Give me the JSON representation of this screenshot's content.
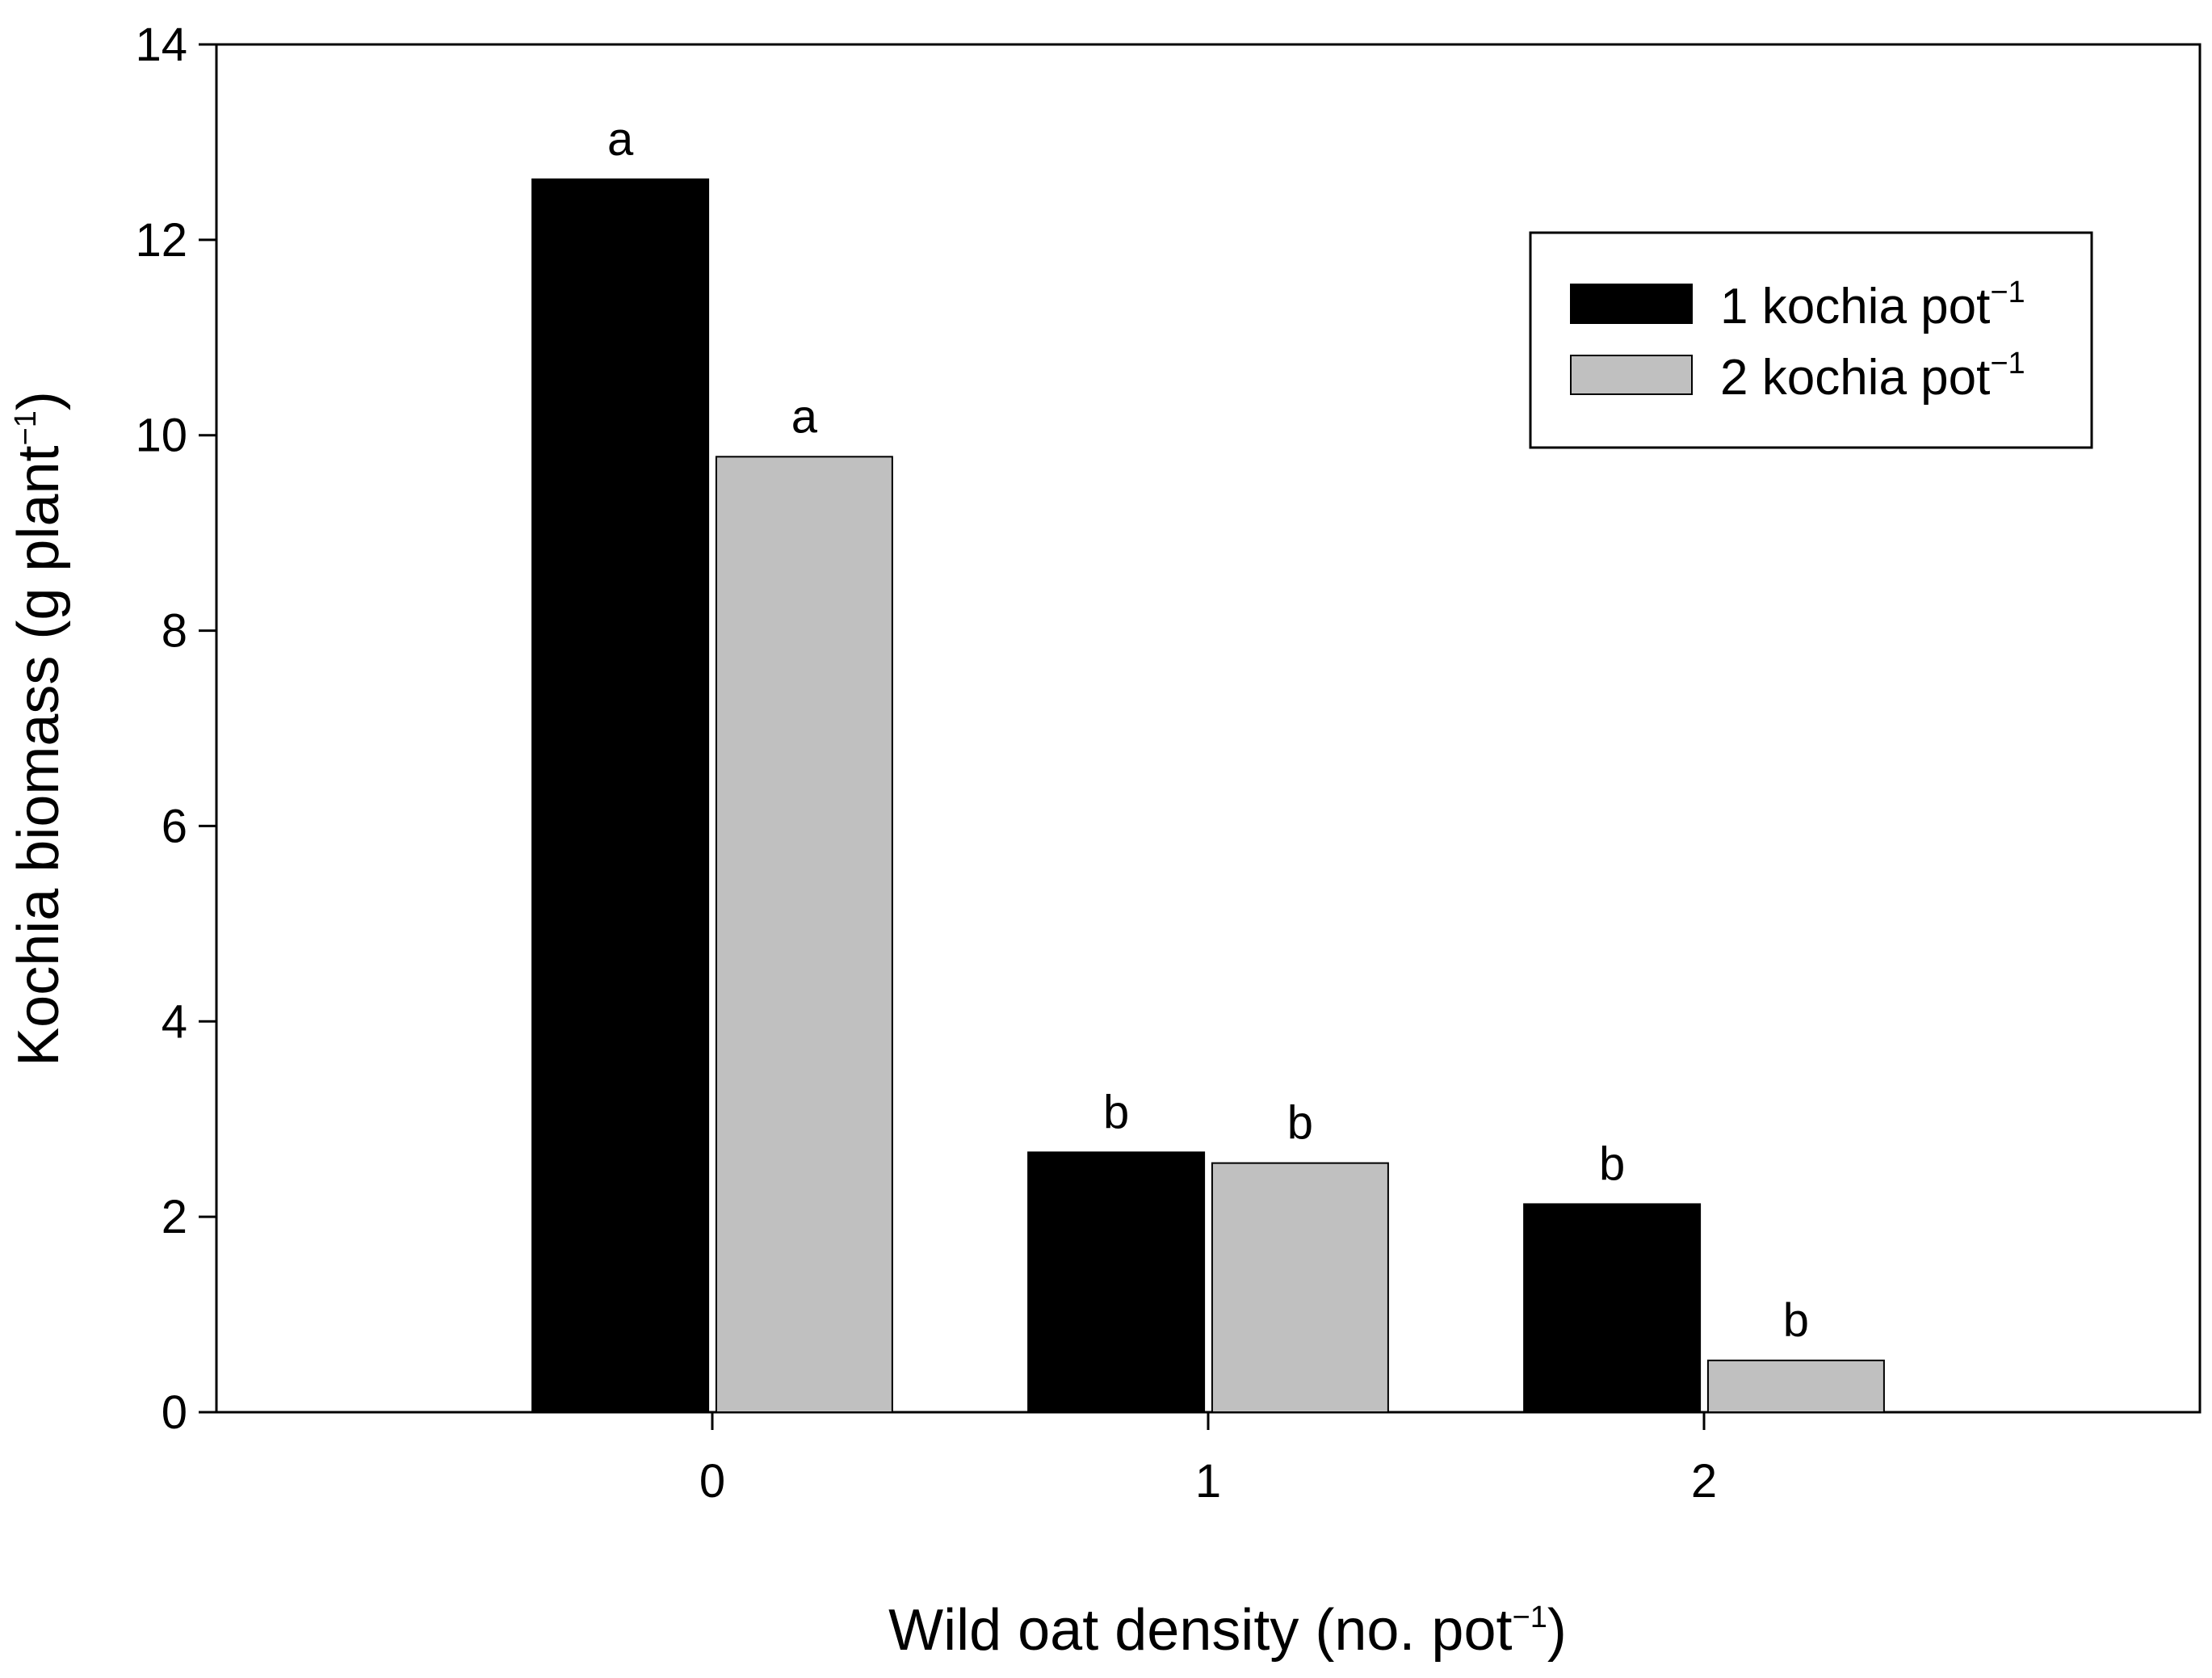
{
  "chart_data": {
    "type": "bar",
    "categories": [
      "0",
      "1",
      "2"
    ],
    "series": [
      {
        "name": "1 kochia pot",
        "name_sup": "−1",
        "color": "#000000",
        "values": [
          12.62,
          2.66,
          2.13
        ],
        "letters": [
          "a",
          "b",
          "b"
        ]
      },
      {
        "name": "2 kochia pot",
        "name_sup": "−1",
        "color": "#c0c0c0",
        "values": [
          9.78,
          2.55,
          0.53
        ],
        "letters": [
          "a",
          "b",
          "b"
        ]
      }
    ],
    "xlabel": "Wild oat density (no. pot",
    "xlabel_sup": "−1",
    "xlabel_tail": ")",
    "ylabel": "Kochia biomass (g plant",
    "ylabel_sup": "−1",
    "ylabel_tail": ")",
    "ylim": [
      0,
      14
    ],
    "yticks": [
      "0",
      "2",
      "4",
      "6",
      "8",
      "10",
      "12",
      "14"
    ],
    "grid": false,
    "legend_position": "top-right"
  }
}
